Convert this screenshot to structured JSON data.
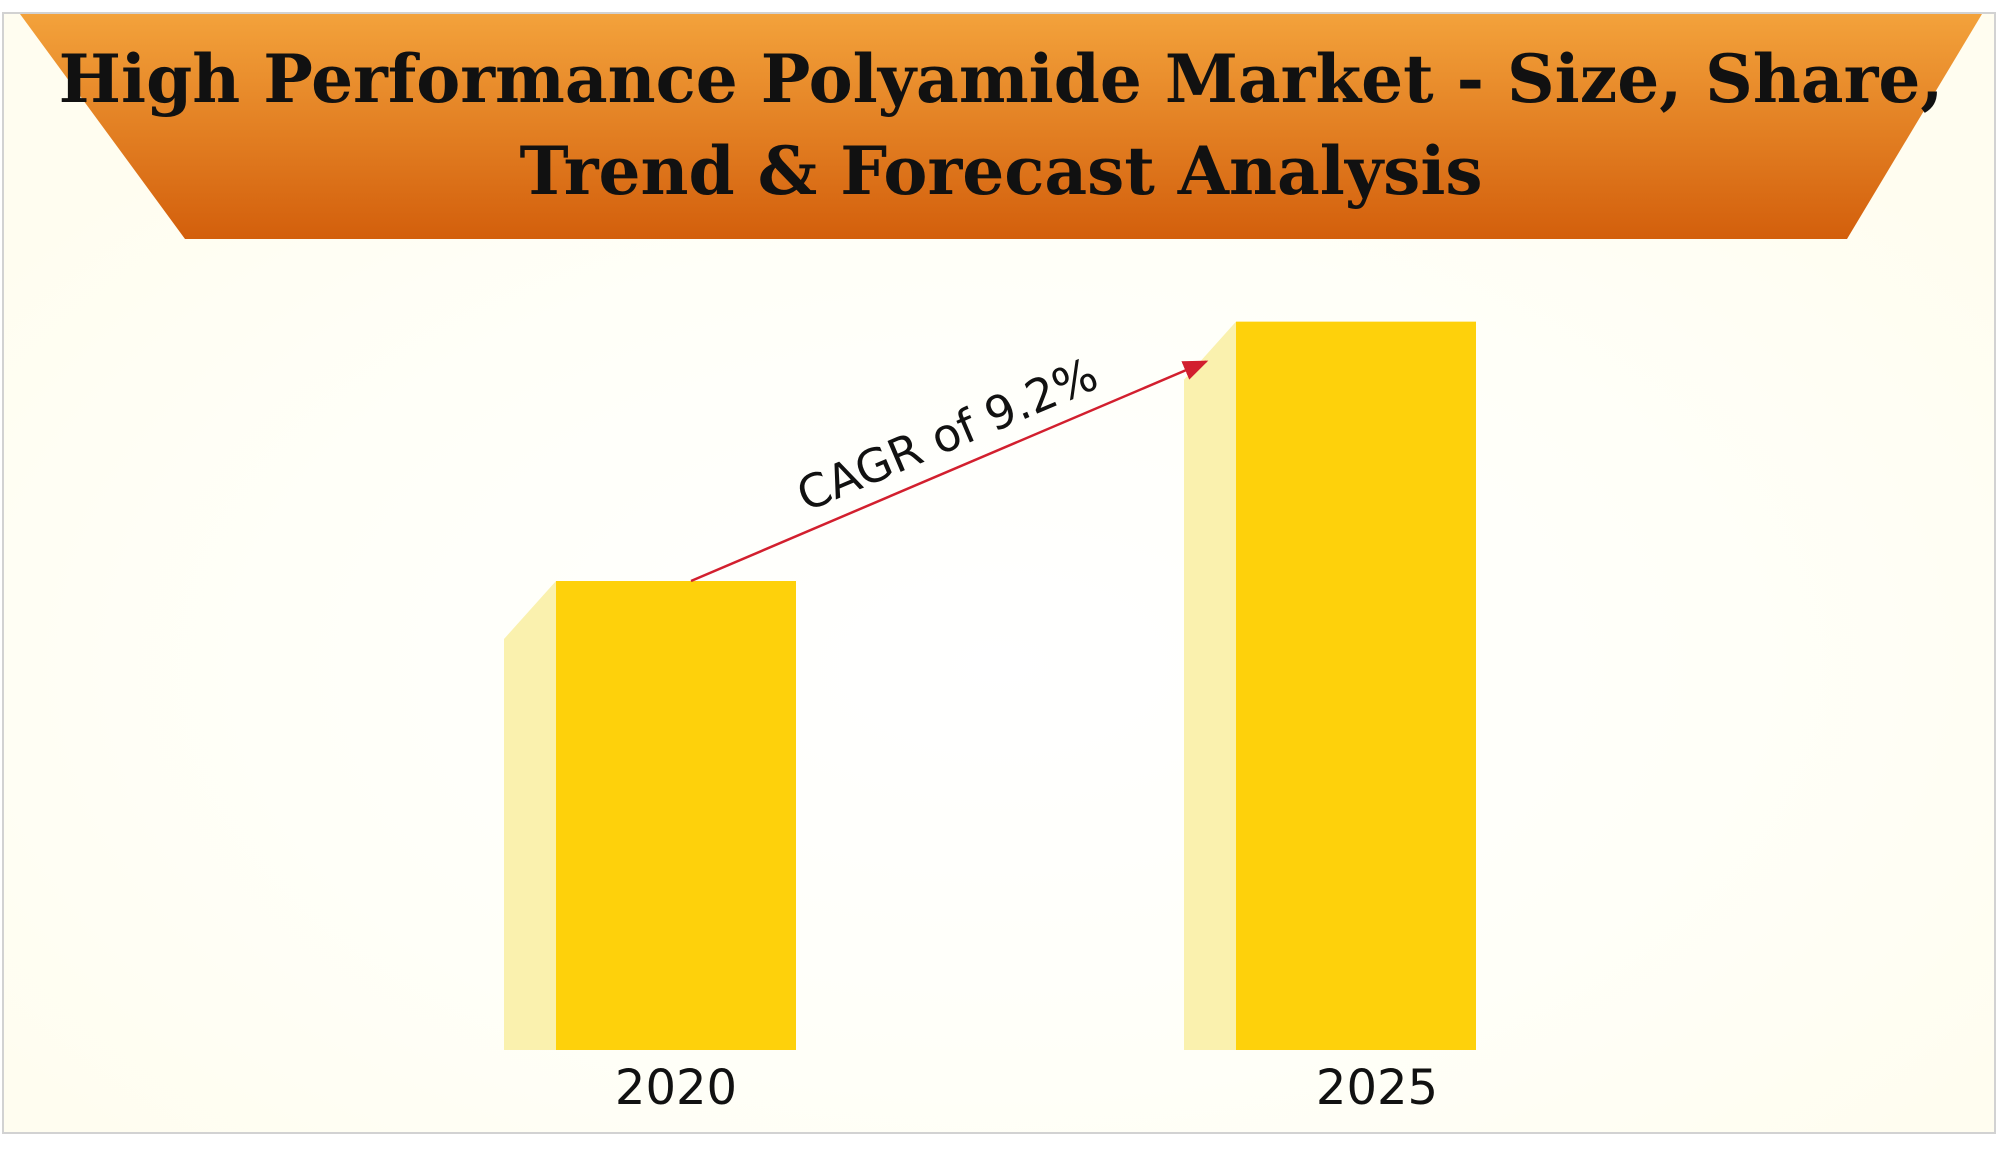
{
  "chart_data": {
    "type": "bar",
    "title_lines": [
      "High Performance Polyamide Market - Size, Share,",
      "Trend & Forecast Analysis"
    ],
    "categories": [
      "2020",
      "2025"
    ],
    "values": [
      1.0,
      1.553
    ],
    "annotation": "CAGR of 9.2%",
    "grid": false,
    "legend": "none"
  },
  "colors": {
    "banner_top": "#f3a23b",
    "banner_bottom": "#d35f0c",
    "bar_front": "#fed10b",
    "bar_side": "#faf1ae",
    "arrow": "#d21f2e",
    "background": "#fffdf0"
  }
}
